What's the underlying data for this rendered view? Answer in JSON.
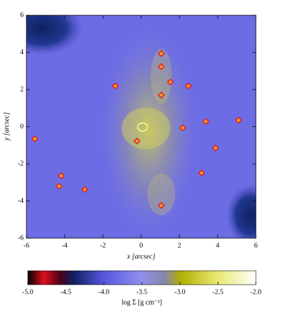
{
  "chart_data": {
    "type": "scatter",
    "xlabel": "x [arcsec]",
    "ylabel": "y [arcsec]",
    "x": [
      1.05,
      1.05,
      1.53,
      2.47,
      -1.35,
      1.05,
      -0.22,
      2.18,
      3.38,
      5.09,
      3.89,
      3.16,
      -5.56,
      -4.18,
      -4.29,
      -2.95,
      1.05
    ],
    "values": [
      3.94,
      3.23,
      2.41,
      2.19,
      2.19,
      1.7,
      -0.77,
      -0.06,
      0.28,
      0.35,
      -1.14,
      -2.49,
      -0.65,
      -2.64,
      -3.2,
      -3.38,
      -4.24
    ],
    "color": "#e02020",
    "xlim": [
      -6,
      6
    ],
    "xticks": [
      -6,
      -4,
      -2,
      0,
      2,
      4,
      6
    ],
    "ylim": [
      -6,
      6
    ],
    "yticks": [
      -6,
      -4,
      -2,
      0,
      2,
      4,
      6
    ],
    "colorbar": {
      "label": "log Σ [g cm⁻²]",
      "lim": [
        -5.0,
        -2.0
      ],
      "ticks": [
        {
          "value": -5.0,
          "label": "-5.0"
        },
        {
          "value": -4.5,
          "label": "-4.5"
        },
        {
          "value": -4.0,
          "label": "-4.0"
        },
        {
          "value": -3.5,
          "label": "-3.5"
        },
        {
          "value": -3.0,
          "label": "-3.0"
        },
        {
          "value": -2.5,
          "label": "-2.5"
        },
        {
          "value": -2.0,
          "label": "-2.0"
        }
      ]
    }
  }
}
